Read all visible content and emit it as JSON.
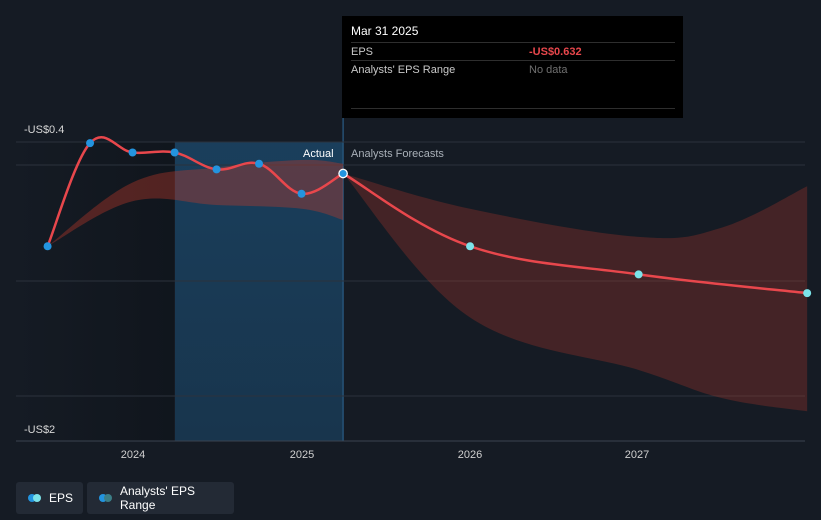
{
  "tooltip": {
    "date": "Mar 31 2025",
    "rows": [
      {
        "label": "EPS",
        "value": "-US$0.632"
      },
      {
        "label": "Analysts' EPS Range",
        "value": "No data"
      }
    ]
  },
  "y_axis": {
    "top_label": "-US$0.4",
    "bottom_label": "-US$2"
  },
  "regions": {
    "actual": "Actual",
    "forecast": "Analysts Forecasts"
  },
  "legend": [
    {
      "label": "EPS",
      "color_a": "#2394df",
      "color_b": "#7be3e9"
    },
    {
      "label": "Analysts' EPS Range",
      "color_a": "#2394df",
      "color_b": "#3c7f87"
    }
  ],
  "colors": {
    "eps_line": "#e8474c",
    "actual_point": "#2394df",
    "forecast_point": "#7be3e9",
    "range_fill": "#c0392b",
    "highlight": "#1d6ea8"
  },
  "chart_data": {
    "type": "line",
    "x_ticks": [
      "2024",
      "2025",
      "2026",
      "2027"
    ],
    "ylim": [
      -2.0,
      -0.4
    ],
    "series": [
      {
        "name": "EPS",
        "kind": "actual",
        "points": [
          {
            "x": "2023-06-30",
            "y": -1.02
          },
          {
            "x": "2023-09-30",
            "y": -0.47
          },
          {
            "x": "2023-12-31",
            "y": -0.52
          },
          {
            "x": "2024-03-31",
            "y": -0.52
          },
          {
            "x": "2024-06-30",
            "y": -0.61
          },
          {
            "x": "2024-09-30",
            "y": -0.58
          },
          {
            "x": "2024-12-31",
            "y": -0.74
          },
          {
            "x": "2025-03-31",
            "y": -0.632
          }
        ]
      },
      {
        "name": "EPS",
        "kind": "forecast",
        "points": [
          {
            "x": "2025-03-31",
            "y": -0.632
          },
          {
            "x": "2025-12-31",
            "y": -1.02
          },
          {
            "x": "2026-12-31",
            "y": -1.17
          },
          {
            "x": "2027-12-31",
            "y": -1.27
          }
        ]
      }
    ],
    "historical_range": [
      {
        "x": "2023-06-30",
        "low": -1.02,
        "high": -1.02
      },
      {
        "x": "2023-12-31",
        "low": -0.78,
        "high": -0.68
      },
      {
        "x": "2024-06-30",
        "low": -0.8,
        "high": -0.6
      },
      {
        "x": "2024-12-31",
        "low": -0.82,
        "high": -0.56
      },
      {
        "x": "2025-03-31",
        "low": -0.88,
        "high": -0.58
      }
    ],
    "forecast_range": [
      {
        "x": "2025-03-31",
        "low": -0.632,
        "high": -0.632
      },
      {
        "x": "2025-12-31",
        "low": -1.4,
        "high": -0.82
      },
      {
        "x": "2026-12-31",
        "low": -1.68,
        "high": -0.97
      },
      {
        "x": "2027-06-30",
        "low": -1.83,
        "high": -0.92
      },
      {
        "x": "2027-12-31",
        "low": -1.9,
        "high": -0.7
      }
    ],
    "grid": true,
    "legend_position": "bottom-left"
  }
}
